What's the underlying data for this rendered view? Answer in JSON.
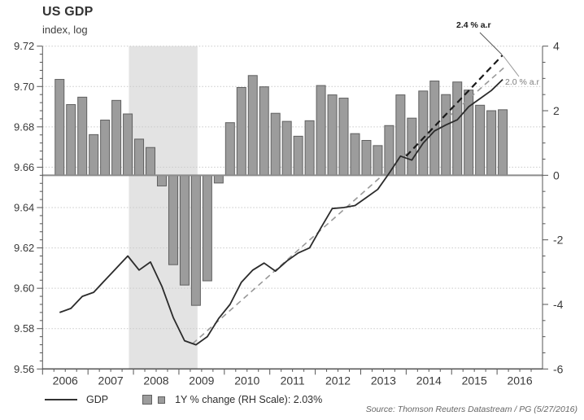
{
  "header": {
    "title": "US GDP",
    "subtitle": "index, log"
  },
  "chart_data": {
    "type": "line+bar combo",
    "categories": [
      "2006Q2",
      "2006Q3",
      "2006Q4",
      "2007Q1",
      "2007Q2",
      "2007Q3",
      "2007Q4",
      "2008Q1",
      "2008Q2",
      "2008Q3",
      "2008Q4",
      "2009Q1",
      "2009Q2",
      "2009Q3",
      "2009Q4",
      "2010Q1",
      "2010Q2",
      "2010Q3",
      "2010Q4",
      "2011Q1",
      "2011Q2",
      "2011Q3",
      "2011Q4",
      "2012Q1",
      "2012Q2",
      "2012Q3",
      "2012Q4",
      "2013Q1",
      "2013Q2",
      "2013Q3",
      "2013Q4",
      "2014Q1",
      "2014Q2",
      "2014Q3",
      "2014Q4",
      "2015Q1",
      "2015Q2",
      "2015Q3",
      "2015Q4",
      "2016Q1"
    ],
    "series": [
      {
        "name": "GDP",
        "type": "line",
        "axis": "left",
        "values": [
          9.588,
          9.59,
          9.596,
          9.598,
          9.604,
          9.61,
          9.616,
          9.609,
          9.613,
          9.601,
          9.5855,
          9.574,
          9.572,
          9.576,
          9.585,
          9.592,
          9.603,
          9.609,
          9.6125,
          9.6085,
          9.6135,
          9.6175,
          9.62,
          9.63,
          9.6395,
          9.64,
          9.641,
          9.645,
          9.649,
          9.657,
          9.6655,
          9.6635,
          9.672,
          9.678,
          9.681,
          9.6835,
          9.69,
          9.694,
          9.698,
          9.7035
        ]
      },
      {
        "name": "1Y % change (RH Scale)",
        "type": "bar",
        "axis": "right",
        "values": [
          2.97,
          2.19,
          2.42,
          1.26,
          1.71,
          2.32,
          1.9,
          1.12,
          0.86,
          -0.33,
          -2.77,
          -3.4,
          -4.03,
          -3.27,
          -0.24,
          1.63,
          2.72,
          3.09,
          2.74,
          1.92,
          1.67,
          1.21,
          1.69,
          2.78,
          2.49,
          2.39,
          1.29,
          1.08,
          0.92,
          1.54,
          2.49,
          1.77,
          2.61,
          2.92,
          2.5,
          2.89,
          2.64,
          2.17,
          2.0,
          2.03
        ]
      }
    ],
    "latest_bar_value": "2.03%",
    "left_axis": {
      "min": 9.56,
      "max": 9.72,
      "major_ticks": [
        "9.72",
        "9.70",
        "9.68",
        "9.66",
        "9.64",
        "9.62",
        "9.60",
        "9.58",
        "9.56"
      ],
      "minor_step": 0.004
    },
    "right_axis": {
      "min": -6,
      "max": 4,
      "major_ticks": [
        "4",
        "2",
        "0",
        "-2",
        "-4",
        "-6"
      ],
      "minor_step": 0.5,
      "zero_line": 0
    },
    "x_axis": {
      "start": 2006,
      "end": 2017,
      "year_labels": [
        "2006",
        "2007",
        "2008",
        "2009",
        "2010",
        "2011",
        "2012",
        "2013",
        "2014",
        "2015",
        "2016"
      ],
      "minor_step": 0.25
    },
    "recession_band": {
      "from": 2007.9,
      "to": 2009.41
    },
    "trend_lines": [
      {
        "name": "2.0 % a.r trend",
        "style": "gray-dashed",
        "from_year": 2009.3,
        "from_value": 9.5725,
        "to_year": 2016.16,
        "to_value": 9.7095
      },
      {
        "name": "2.4 % a.r trend",
        "style": "black-dashed",
        "from_year": 2014.0,
        "from_value": 9.6655,
        "to_year": 2016.12,
        "to_value": 9.7155
      }
    ],
    "annotations": [
      {
        "label": "2.4 % a.r",
        "line": [
          590,
          40,
          617,
          67
        ],
        "line_color": "#555555"
      },
      {
        "label": "2.0 % a.r",
        "line": [
          619,
          69,
          638,
          94
        ],
        "line_color": "#999999"
      }
    ],
    "grid": "horizontal dotted on left-axis majors",
    "colors": {
      "bar_fill": "#9c9c9c",
      "bar_border": "#606060",
      "line": "#2b2b2b",
      "band": "#e3e3e3",
      "grid": "#c9c9c9",
      "baseline": "#8c8c8c",
      "trend_gray": "#999999",
      "trend_black": "#1a1a1a",
      "axis": "#555555",
      "text": "#3a3a3a"
    }
  },
  "legend": {
    "gdp_label": "GDP",
    "bar_label": "1Y % change (RH Scale): 2.03%"
  },
  "source": "Source: Thomson Reuters Datastream / PG (5/27/2016)"
}
